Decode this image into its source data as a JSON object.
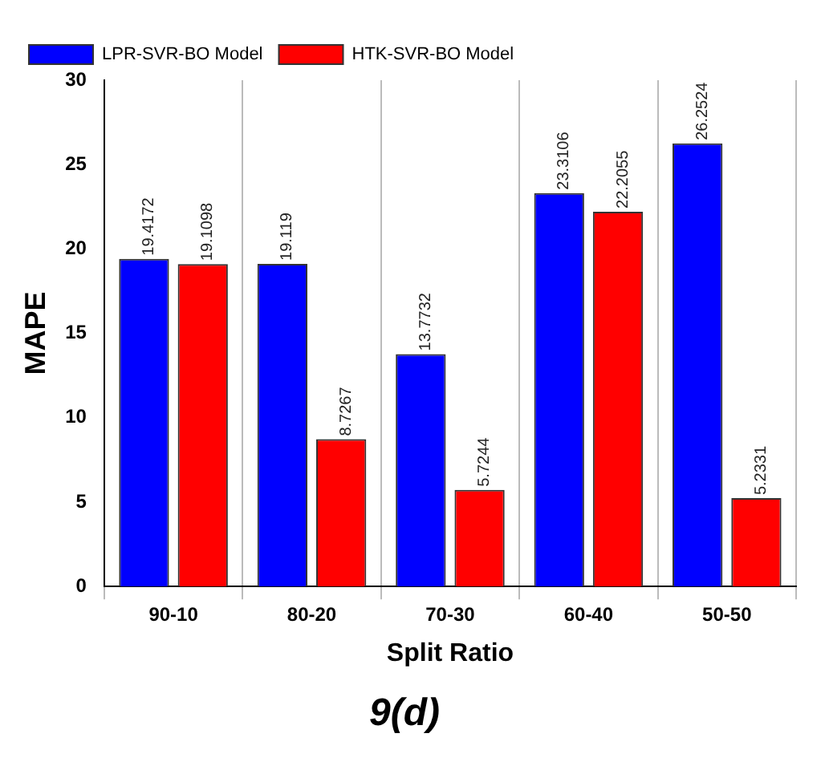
{
  "chart_data": {
    "type": "bar",
    "title": "9(d)",
    "xlabel": "Split Ratio",
    "ylabel": "MAPE",
    "categories": [
      "90-10",
      "80-20",
      "70-30",
      "60-40",
      "50-50"
    ],
    "series": [
      {
        "name": "LPR-SVR-BO Model",
        "color": "#0000ff",
        "values": [
          19.4172,
          19.119,
          13.7732,
          23.3106,
          26.2524
        ]
      },
      {
        "name": "HTK-SVR-BO Model",
        "color": "#ff0000",
        "values": [
          19.1098,
          8.7267,
          5.7244,
          22.2055,
          5.2331
        ]
      }
    ],
    "ylim": [
      0,
      30
    ],
    "yticks": [
      0,
      5,
      10,
      15,
      20,
      25,
      30
    ],
    "grid": "x",
    "legend": "top left",
    "data_labels": true
  }
}
